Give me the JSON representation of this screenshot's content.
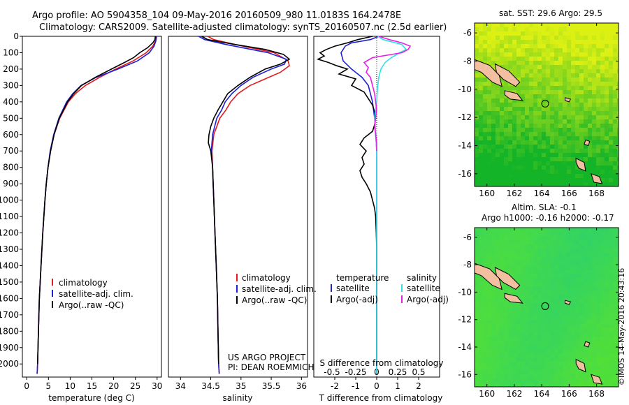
{
  "header": {
    "line1": "Argo profile: AO 5904358_104 09-May-2016 20160509_980 11.0183S 164.2478E",
    "line2": "Climatology: CARS2009. Satellite-adjusted climatology: synTS_20160507.nc (2.5d earlier)"
  },
  "colors": {
    "climatology": "#e31a1c",
    "satellite": "#1f1fd6",
    "argo": "#000000",
    "sal_satellite": "#33e0e8",
    "sal_argo": "#e81ee8",
    "land": "#f2bfa0"
  },
  "credits": {
    "project": "US ARGO PROJECT",
    "pi": "PI: DEAN ROEMMICH",
    "imos": "©IMOS 14-May-2016 20:43:16"
  },
  "legend_temp": [
    "climatology",
    "satellite-adj. clim.",
    "Argo(..raw -QC)"
  ],
  "legend_sal": [
    "climatology",
    "satellite-adj. clim.",
    "Argo(..raw -QC)"
  ],
  "legend_diff": {
    "temperature": "temperature",
    "salinity": "salinity",
    "t_sat": "satellite",
    "t_argo": "Argo(-adj)",
    "s_sat": "satellite",
    "s_argo": "Argo(-adj)"
  },
  "maps": {
    "sst_title": "sat. SST: 29.6 Argo: 29.5",
    "sla_title1": "Altim. SLA: -0.1",
    "sla_title2": "Argo h1000: -0.16 h2000: -0.17",
    "yticks": [
      "-6",
      "-8",
      "-10",
      "-12",
      "-14",
      "-16"
    ],
    "xticks": [
      "160",
      "162",
      "164",
      "166",
      "168"
    ],
    "lon_range": [
      159.1,
      169.6
    ],
    "lat_range": [
      -16.9,
      -5.3
    ],
    "float_pos": [
      164.25,
      -11.02
    ]
  },
  "chart_data": [
    {
      "type": "line",
      "xlabel": "temperature (deg C)",
      "ylabel": "",
      "xlim": [
        -1,
        31
      ],
      "ylim": [
        2080,
        0
      ],
      "xticks": [
        0,
        5,
        10,
        15,
        20,
        25,
        30
      ],
      "yticks": [
        0,
        100,
        200,
        300,
        400,
        500,
        600,
        700,
        800,
        900,
        1000,
        1100,
        1200,
        1300,
        1400,
        1500,
        1600,
        1700,
        1800,
        1900,
        2000
      ],
      "series": [
        {
          "name": "climatology",
          "color_key": "climatology",
          "depth": [
            0,
            30,
            60,
            100,
            150,
            200,
            250,
            300,
            350,
            400,
            500,
            600,
            700,
            800,
            900,
            1000,
            1200,
            1400,
            1600,
            1800,
            2000,
            2060
          ],
          "values": [
            29.8,
            29.6,
            29.0,
            27.5,
            24.5,
            20.5,
            16.8,
            13.5,
            11.2,
            9.6,
            7.6,
            6.3,
            5.5,
            4.9,
            4.5,
            4.2,
            3.7,
            3.3,
            2.9,
            2.7,
            2.5,
            2.4
          ]
        },
        {
          "name": "satellite-adj. clim.",
          "color_key": "satellite",
          "depth": [
            0,
            30,
            60,
            100,
            150,
            200,
            250,
            300,
            350,
            400,
            500,
            600,
            700,
            800,
            900,
            1000,
            1200,
            1400,
            1600,
            1800,
            2000,
            2060
          ],
          "values": [
            29.9,
            29.7,
            29.3,
            28.2,
            25.5,
            21.0,
            16.0,
            12.5,
            10.6,
            9.2,
            7.4,
            6.2,
            5.4,
            4.9,
            4.5,
            4.2,
            3.7,
            3.3,
            2.9,
            2.7,
            2.5,
            2.4
          ]
        },
        {
          "name": "Argo(..raw -QC)",
          "color_key": "argo",
          "depth": [
            0,
            20,
            40,
            70,
            100,
            130,
            160,
            200,
            250,
            300,
            350,
            400,
            500,
            600,
            700,
            800,
            900,
            1000,
            1200,
            1400,
            1600,
            1800,
            2000
          ],
          "values": [
            29.6,
            29.5,
            29.0,
            27.8,
            26.0,
            24.6,
            22.5,
            19.5,
            15.8,
            12.6,
            10.8,
            9.4,
            7.5,
            6.3,
            5.5,
            4.9,
            4.5,
            4.2,
            3.7,
            3.3,
            2.9,
            2.7,
            2.5
          ]
        }
      ]
    },
    {
      "type": "line",
      "xlabel": "salinity",
      "ylabel": "",
      "xlim": [
        33.8,
        36.1
      ],
      "ylim": [
        2080,
        0
      ],
      "xticks": [
        34,
        34.5,
        35,
        35.5,
        36
      ],
      "series": [
        {
          "name": "climatology",
          "color_key": "climatology",
          "depth": [
            0,
            20,
            50,
            100,
            150,
            180,
            220,
            260,
            300,
            350,
            400,
            450,
            500,
            600,
            700,
            800,
            900,
            1000,
            1200,
            1400,
            1600,
            1800,
            2000,
            2060
          ],
          "values": [
            34.45,
            34.55,
            34.9,
            35.55,
            35.78,
            35.8,
            35.65,
            35.4,
            35.15,
            34.95,
            34.83,
            34.75,
            34.65,
            34.55,
            34.52,
            34.53,
            34.54,
            34.55,
            34.57,
            34.59,
            34.61,
            34.62,
            34.63,
            34.64
          ]
        },
        {
          "name": "satellite-adj. clim.",
          "color_key": "satellite",
          "depth": [
            0,
            20,
            50,
            100,
            140,
            170,
            200,
            250,
            300,
            350,
            400,
            450,
            500,
            600,
            700,
            800,
            900,
            1000,
            1200,
            1400,
            1600,
            1800,
            2000,
            2060
          ],
          "values": [
            34.3,
            34.4,
            34.75,
            35.45,
            35.75,
            35.72,
            35.5,
            35.2,
            35.0,
            34.85,
            34.74,
            34.68,
            34.6,
            34.53,
            34.51,
            34.53,
            34.54,
            34.55,
            34.57,
            34.59,
            34.61,
            34.62,
            34.63,
            34.64
          ]
        },
        {
          "name": "Argo(..raw -QC)",
          "color_key": "argo",
          "depth": [
            0,
            20,
            50,
            80,
            110,
            140,
            170,
            200,
            250,
            300,
            350,
            400,
            450,
            500,
            550,
            600,
            650,
            700,
            800,
            900,
            1000,
            1200,
            1400,
            1600,
            1800,
            2000
          ],
          "values": [
            34.35,
            34.45,
            34.9,
            35.4,
            35.7,
            35.8,
            35.65,
            35.4,
            35.15,
            34.95,
            34.78,
            34.7,
            34.62,
            34.55,
            34.5,
            34.47,
            34.46,
            34.5,
            34.53,
            34.54,
            34.55,
            34.57,
            34.59,
            34.61,
            34.62,
            34.63
          ]
        }
      ]
    },
    {
      "type": "line",
      "xlabel": "T difference from climatology",
      "xlabel_top": "S difference from climatology",
      "xlim": [
        -3,
        3
      ],
      "ylim": [
        2080,
        0
      ],
      "xticks": [
        -2,
        -1,
        0,
        1,
        2
      ],
      "xticks_top": [
        "-0.5",
        "-0.25",
        "0",
        "0.25",
        "0.5"
      ],
      "series": [
        {
          "name": "satellite",
          "color_key": "satellite",
          "depth": [
            0,
            20,
            40,
            60,
            100,
            150,
            200,
            250,
            300,
            350,
            400,
            500,
            600,
            700,
            800,
            900,
            1000,
            1200,
            1400,
            1600,
            1800,
            2000,
            2060
          ],
          "values": [
            0.1,
            -0.3,
            -1.2,
            -1.5,
            -1.7,
            -1.6,
            -1.2,
            -0.7,
            -0.4,
            -0.3,
            -0.2,
            -0.1,
            -0.05,
            0,
            0,
            0,
            0,
            0,
            0,
            0,
            0,
            0,
            0
          ]
        },
        {
          "name": "Argo(-adj)",
          "color_key": "argo",
          "depth": [
            0,
            20,
            40,
            60,
            80,
            100,
            120,
            140,
            160,
            180,
            200,
            230,
            260,
            300,
            340,
            380,
            420,
            460,
            500,
            540,
            580,
            620,
            660,
            700,
            740,
            780,
            820,
            860,
            900,
            950,
            1000,
            1050,
            1100,
            1200,
            1300,
            1400,
            1600,
            1800,
            2000
          ],
          "values": [
            -0.2,
            -0.9,
            -1.4,
            -2.0,
            -2.4,
            -2.7,
            -2.5,
            -2.8,
            -2.3,
            -1.9,
            -1.4,
            -1.8,
            -1.0,
            -1.2,
            -0.6,
            -0.4,
            -0.2,
            -0.1,
            -0.05,
            -0.1,
            -0.2,
            -0.6,
            -0.8,
            -0.5,
            -0.7,
            -0.6,
            -0.8,
            -0.7,
            -0.5,
            -0.3,
            -0.2,
            -0.1,
            -0.05,
            -0.02,
            0,
            0,
            0,
            0,
            0
          ]
        },
        {
          "name": "satellite",
          "color_key": "sal_satellite",
          "depth": [
            0,
            20,
            50,
            80,
            100,
            130,
            160,
            200,
            250,
            300,
            350,
            400,
            500,
            600,
            700,
            800,
            900,
            1000,
            1200,
            1400,
            1600,
            1800,
            2000,
            2060
          ],
          "values": [
            0.05,
            0.3,
            1.2,
            1.4,
            1.1,
            0.7,
            0.4,
            0.2,
            0.1,
            0.05,
            0.02,
            0,
            -0.1,
            -0.05,
            0,
            0,
            0,
            0,
            0,
            0,
            0,
            0,
            0,
            0
          ]
        },
        {
          "name": "Argo(-adj)",
          "color_key": "sal_argo",
          "depth": [
            0,
            20,
            40,
            60,
            80,
            100,
            130,
            160,
            190,
            220,
            250,
            300,
            350,
            400,
            450,
            500,
            550,
            600,
            650,
            700
          ],
          "values": [
            0.1,
            0.6,
            1.2,
            1.6,
            1.5,
            1.2,
            -0.2,
            -0.6,
            -0.4,
            -0.5,
            -0.3,
            -0.2,
            -0.1,
            -0.05,
            0,
            -0.05,
            -0.1,
            -0.05,
            0,
            0
          ]
        }
      ]
    }
  ]
}
